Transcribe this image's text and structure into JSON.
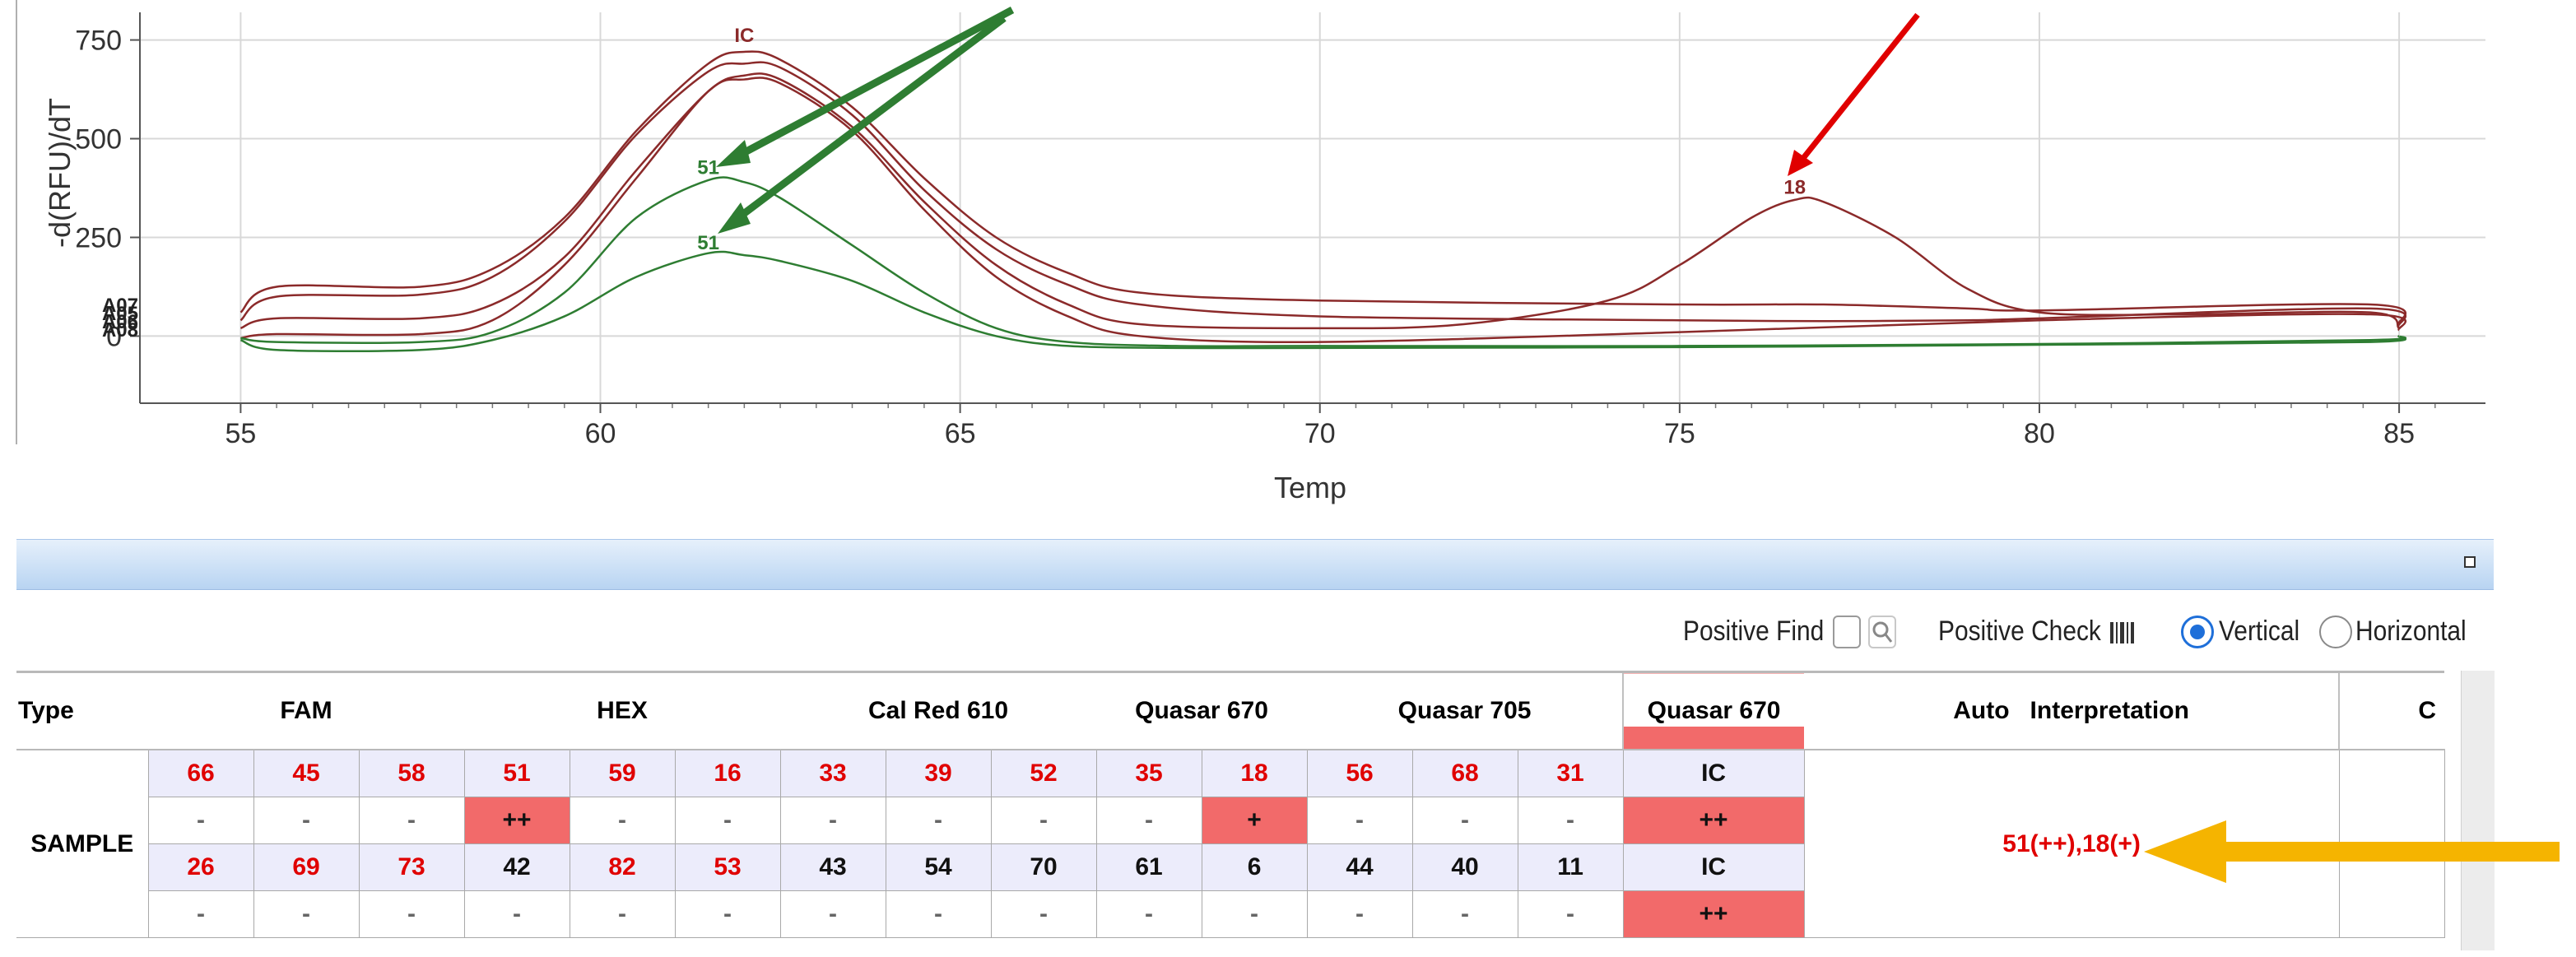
{
  "chart_data": {
    "type": "line",
    "xlabel": "Temp",
    "ylabel": "-d(RFU)/dT",
    "xlim": [
      53.6,
      86.2
    ],
    "ylim": [
      -170,
      820
    ],
    "xticks": [
      55,
      60,
      65,
      70,
      75,
      80,
      85
    ],
    "yticks": [
      0,
      250,
      500,
      750
    ],
    "grid": true,
    "left_well_labels": [
      "A07",
      "A05",
      "A06",
      "A08"
    ],
    "series": [
      {
        "color": "#8b2a2a",
        "x": [
          55,
          55.5,
          57.5,
          58.5,
          59.5,
          60.5,
          61.5,
          62,
          62.5,
          63.5,
          64.5,
          65.5,
          66.5,
          67.5,
          70,
          75,
          77,
          79,
          80,
          84.6,
          85
        ],
        "y": [
          60,
          125,
          125,
          170,
          300,
          520,
          690,
          720,
          700,
          580,
          400,
          250,
          160,
          110,
          90,
          80,
          80,
          70,
          65,
          80,
          30
        ]
      },
      {
        "color": "#8b2a2a",
        "x": [
          55,
          55.5,
          57.5,
          58.5,
          59.5,
          60.5,
          61.5,
          62,
          62.5,
          63.5,
          64.5,
          65.5,
          66.5,
          67.5,
          70,
          75,
          77,
          79,
          80,
          84.6,
          85
        ],
        "y": [
          40,
          100,
          105,
          150,
          290,
          510,
          670,
          690,
          680,
          560,
          370,
          220,
          130,
          80,
          50,
          40,
          38,
          40,
          45,
          70,
          25
        ]
      },
      {
        "color": "#8b2a2a",
        "x": [
          55,
          55.5,
          57.5,
          58.5,
          59.5,
          60.5,
          61.5,
          62,
          62.5,
          63.5,
          64.5,
          65.5,
          66.5,
          67.5,
          70,
          72,
          74,
          75,
          76,
          76.6,
          77,
          78,
          79,
          80,
          82,
          84.6,
          85
        ],
        "y": [
          20,
          45,
          45,
          80,
          200,
          420,
          620,
          660,
          650,
          530,
          340,
          180,
          80,
          30,
          20,
          30,
          90,
          180,
          300,
          345,
          340,
          250,
          120,
          60,
          55,
          60,
          20
        ]
      },
      {
        "color": "#8b2a2a",
        "x": [
          55,
          55.5,
          57.5,
          58.5,
          59.5,
          60.5,
          61.5,
          62,
          62.5,
          63.5,
          64.5,
          65.5,
          66.5,
          67.5,
          70,
          75,
          80,
          84.6,
          85
        ],
        "y": [
          -5,
          5,
          5,
          40,
          180,
          400,
          620,
          650,
          640,
          520,
          320,
          150,
          50,
          0,
          -15,
          10,
          40,
          55,
          15
        ]
      },
      {
        "color": "#2e7d32",
        "x": [
          55,
          55.5,
          57.5,
          58.5,
          59.5,
          60.5,
          61.5,
          62,
          62.5,
          63.5,
          64.5,
          65.5,
          66.5,
          68,
          70,
          75,
          80,
          84.6,
          85
        ],
        "y": [
          -5,
          -15,
          -15,
          10,
          110,
          300,
          395,
          390,
          350,
          230,
          110,
          20,
          -15,
          -25,
          -25,
          -25,
          -20,
          -10,
          0
        ]
      },
      {
        "color": "#2e7d32",
        "x": [
          55,
          55.5,
          57.5,
          58.5,
          59.5,
          60.5,
          61.5,
          62,
          62.5,
          63.5,
          64.5,
          65.5,
          66.5,
          68,
          70,
          75,
          80,
          84.6,
          85
        ],
        "y": [
          -10,
          -35,
          -35,
          -10,
          50,
          150,
          210,
          205,
          190,
          140,
          60,
          0,
          -25,
          -30,
          -30,
          -28,
          -22,
          -15,
          0
        ]
      }
    ],
    "peak_labels": [
      {
        "text": "IC",
        "x": 62.0,
        "y": 745,
        "color": "#8b2a2a"
      },
      {
        "text": "51",
        "x": 61.5,
        "y": 410,
        "color": "#2e7d32"
      },
      {
        "text": "51",
        "x": 61.5,
        "y": 220,
        "color": "#2e7d32"
      },
      {
        "text": "18",
        "x": 76.6,
        "y": 360,
        "color": "#8b2a2a"
      }
    ]
  },
  "controls": {
    "positive_find_label": "Positive Find",
    "positive_check_label": "Positive Check",
    "vertical_label": "Vertical",
    "horizontal_label": "Horizontal",
    "selected_orientation": "Vertical"
  },
  "table": {
    "headers": {
      "type": "Type",
      "fam": "FAM",
      "hex": "HEX",
      "calred": "Cal Red 610",
      "quasar670": "Quasar 670",
      "quasar705": "Quasar 705",
      "quasar670_ic": "Quasar 670",
      "auto": "Auto",
      "interpretation": "Interpretation",
      "last": "C"
    },
    "row_type": "SAMPLE",
    "interpretation": "51(++),18(+)",
    "rows": [
      [
        {
          "t": "66",
          "c": "red",
          "bg": "blue"
        },
        {
          "t": "45",
          "c": "red",
          "bg": "blue"
        },
        {
          "t": "58",
          "c": "red",
          "bg": "blue"
        },
        {
          "t": "51",
          "c": "red",
          "bg": "blue"
        },
        {
          "t": "59",
          "c": "red",
          "bg": "blue"
        },
        {
          "t": "16",
          "c": "red",
          "bg": "blue"
        },
        {
          "t": "33",
          "c": "red",
          "bg": "blue"
        },
        {
          "t": "39",
          "c": "red",
          "bg": "blue"
        },
        {
          "t": "52",
          "c": "red",
          "bg": "blue"
        },
        {
          "t": "35",
          "c": "red",
          "bg": "blue"
        },
        {
          "t": "18",
          "c": "red",
          "bg": "blue"
        },
        {
          "t": "56",
          "c": "red",
          "bg": "blue"
        },
        {
          "t": "68",
          "c": "red",
          "bg": "blue"
        },
        {
          "t": "31",
          "c": "red",
          "bg": "blue"
        },
        {
          "t": "IC",
          "c": "black",
          "bg": "blue"
        }
      ],
      [
        {
          "t": "-",
          "c": "dash",
          "bg": "white"
        },
        {
          "t": "-",
          "c": "dash",
          "bg": "white"
        },
        {
          "t": "-",
          "c": "dash",
          "bg": "white"
        },
        {
          "t": "++",
          "c": "black",
          "bg": "pink"
        },
        {
          "t": "-",
          "c": "dash",
          "bg": "white"
        },
        {
          "t": "-",
          "c": "dash",
          "bg": "white"
        },
        {
          "t": "-",
          "c": "dash",
          "bg": "white"
        },
        {
          "t": "-",
          "c": "dash",
          "bg": "white"
        },
        {
          "t": "-",
          "c": "dash",
          "bg": "white"
        },
        {
          "t": "-",
          "c": "dash",
          "bg": "white"
        },
        {
          "t": "+",
          "c": "black",
          "bg": "pink"
        },
        {
          "t": "-",
          "c": "dash",
          "bg": "white"
        },
        {
          "t": "-",
          "c": "dash",
          "bg": "white"
        },
        {
          "t": "-",
          "c": "dash",
          "bg": "white"
        },
        {
          "t": "++",
          "c": "black",
          "bg": "pink"
        }
      ],
      [
        {
          "t": "26",
          "c": "red",
          "bg": "blue"
        },
        {
          "t": "69",
          "c": "red",
          "bg": "blue"
        },
        {
          "t": "73",
          "c": "red",
          "bg": "blue"
        },
        {
          "t": "42",
          "c": "black",
          "bg": "blue"
        },
        {
          "t": "82",
          "c": "red",
          "bg": "blue"
        },
        {
          "t": "53",
          "c": "red",
          "bg": "blue"
        },
        {
          "t": "43",
          "c": "black",
          "bg": "blue"
        },
        {
          "t": "54",
          "c": "black",
          "bg": "blue"
        },
        {
          "t": "70",
          "c": "black",
          "bg": "blue"
        },
        {
          "t": "61",
          "c": "black",
          "bg": "blue"
        },
        {
          "t": "6",
          "c": "black",
          "bg": "blue"
        },
        {
          "t": "44",
          "c": "black",
          "bg": "blue"
        },
        {
          "t": "40",
          "c": "black",
          "bg": "blue"
        },
        {
          "t": "11",
          "c": "black",
          "bg": "blue"
        },
        {
          "t": "IC",
          "c": "black",
          "bg": "blue"
        }
      ],
      [
        {
          "t": "-",
          "c": "dash",
          "bg": "white"
        },
        {
          "t": "-",
          "c": "dash",
          "bg": "white"
        },
        {
          "t": "-",
          "c": "dash",
          "bg": "white"
        },
        {
          "t": "-",
          "c": "dash",
          "bg": "white"
        },
        {
          "t": "-",
          "c": "dash",
          "bg": "white"
        },
        {
          "t": "-",
          "c": "dash",
          "bg": "white"
        },
        {
          "t": "-",
          "c": "dash",
          "bg": "white"
        },
        {
          "t": "-",
          "c": "dash",
          "bg": "white"
        },
        {
          "t": "-",
          "c": "dash",
          "bg": "white"
        },
        {
          "t": "-",
          "c": "dash",
          "bg": "white"
        },
        {
          "t": "-",
          "c": "dash",
          "bg": "white"
        },
        {
          "t": "-",
          "c": "dash",
          "bg": "white"
        },
        {
          "t": "-",
          "c": "dash",
          "bg": "white"
        },
        {
          "t": "-",
          "c": "dash",
          "bg": "white"
        },
        {
          "t": "++",
          "c": "black",
          "bg": "pink"
        }
      ]
    ]
  },
  "colors": {
    "red_series": "#8b2a2a",
    "green_series": "#2e7d32",
    "positive_cell": "#f26a6a",
    "value_red": "#e00000",
    "annotation_green_arrow": "#2e7d32",
    "annotation_red_arrow": "#e00000",
    "annotation_yellow_arrow": "#f5b400"
  },
  "icons": [
    "magnifier-icon",
    "barcode-icon",
    "restore-window-icon"
  ]
}
